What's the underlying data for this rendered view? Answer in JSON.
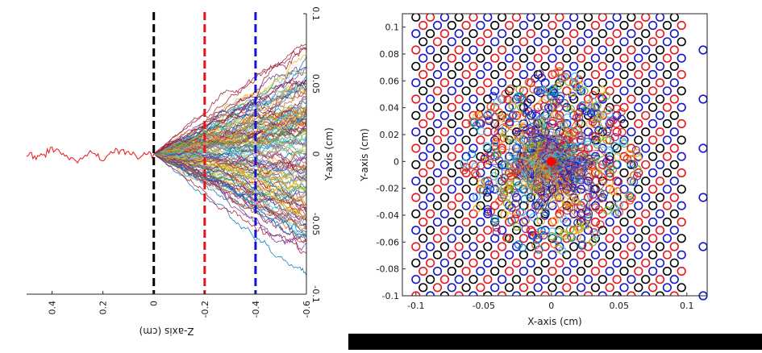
{
  "chart_data": [
    {
      "type": "line",
      "xlabel": "Z-axis (cm)",
      "ylabel": "Y-axis (cm)",
      "x_axis_reversed": true,
      "axes_rotated": true,
      "xlim": [
        0.5,
        -0.6
      ],
      "ylim": [
        -0.1,
        0.1
      ],
      "xticks": [
        0.4,
        0.2,
        0,
        -0.2,
        -0.4,
        -0.6
      ],
      "xtick_labels": [
        "0.4",
        "0.2",
        "0",
        "-0.2",
        "-0.4",
        "-0.6"
      ],
      "yticks": [
        -0.1,
        -0.05,
        0,
        0.05,
        0.1
      ],
      "ytick_labels": [
        "-0.1",
        "-0.05",
        "0",
        "0.05",
        "0.1"
      ],
      "grid": false,
      "vertical_lines": [
        {
          "x": 0,
          "color": "#000000",
          "style": "dashed"
        },
        {
          "x": -0.2,
          "color": "#e8141b",
          "style": "dashed"
        },
        {
          "x": -0.4,
          "color": "#1414cc",
          "style": "dashed"
        }
      ],
      "series_common": {
        "x": [
          0.5,
          0.45,
          0.4,
          0.35,
          0.3,
          0.25,
          0.2,
          0.15,
          0.1,
          0.05,
          0
        ],
        "y": [
          0.0,
          -0.003,
          0.004,
          -0.002,
          -0.006,
          0.001,
          -0.004,
          0.003,
          0.0,
          -0.002,
          0.0
        ],
        "color": "#e8141b"
      },
      "bundle": {
        "x_start": 0,
        "x_end": -0.6,
        "count": 140,
        "spread_at_end": [
          -0.06,
          0.07
        ],
        "colors": [
          "#0072bd",
          "#d95319",
          "#edb120",
          "#7e2f8e",
          "#77ac30",
          "#4dbeee",
          "#a2142f"
        ]
      }
    },
    {
      "type": "scatter",
      "xlabel": "X-axis (cm)",
      "ylabel": "Y-axis (cm)",
      "xlim": [
        -0.11,
        0.115
      ],
      "ylim": [
        -0.1,
        0.11
      ],
      "xticks": [
        -0.1,
        -0.05,
        0,
        0.05,
        0.1
      ],
      "xtick_labels": [
        "-0.1",
        "-0.05",
        "0",
        "0.05",
        "0.1"
      ],
      "yticks": [
        -0.1,
        -0.08,
        -0.06,
        -0.04,
        -0.02,
        0,
        0.02,
        0.04,
        0.06,
        0.08,
        0.1
      ],
      "ytick_labels": [
        "-0.1",
        "-0.08",
        "-0.06",
        "-0.04",
        "-0.02",
        "0",
        "0.02",
        "0.04",
        "0.06",
        "0.08",
        "0.1"
      ],
      "grid": false,
      "lattice": {
        "marker": "open-circle",
        "pitch_x": 0.0106,
        "pitch_y": 0.0061,
        "x_range": [
          -0.1,
          0.1
        ],
        "y_range": [
          -0.1,
          0.11
        ],
        "colors": [
          "#e8141b",
          "#1414cc",
          "#000000"
        ],
        "partial_right_column_x": 0.112,
        "partial_right_column_color": "#1414cc"
      },
      "cluster": {
        "center": [
          0,
          0
        ],
        "radius": 0.065,
        "colors": [
          "#e8141b",
          "#0072bd",
          "#d95319",
          "#edb120",
          "#7e2f8e",
          "#77ac30",
          "#4dbeee",
          "#1414cc"
        ]
      },
      "center_marker": {
        "x": 0,
        "y": 0,
        "color": "#ff0000"
      }
    }
  ]
}
